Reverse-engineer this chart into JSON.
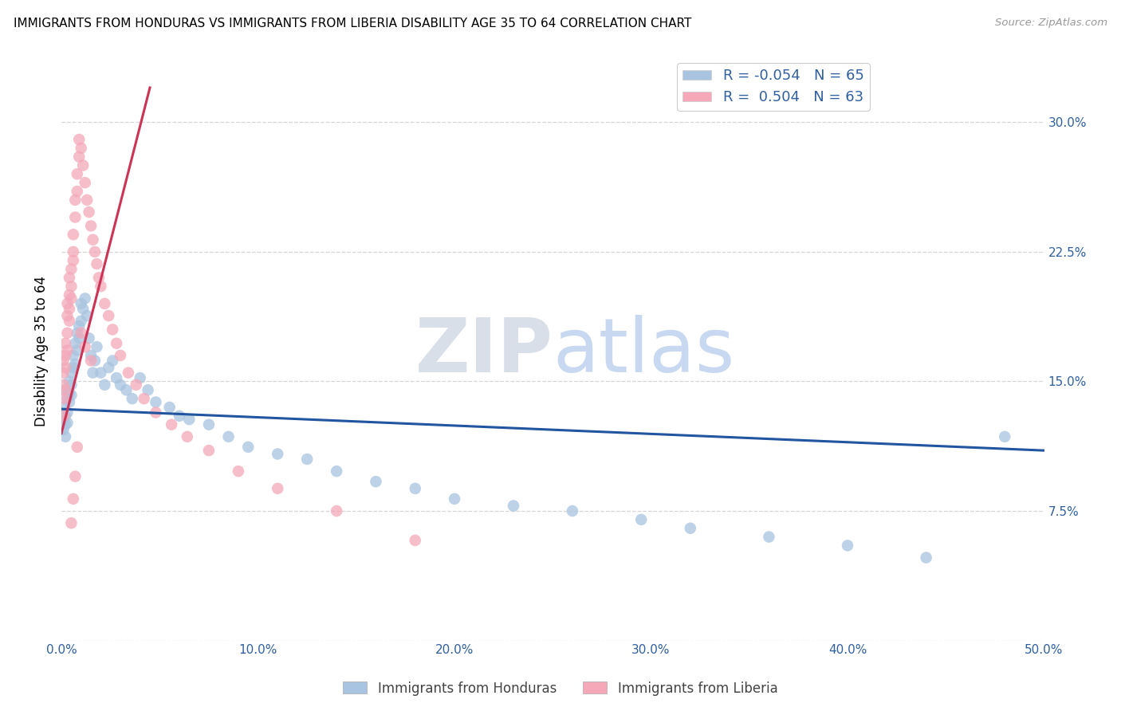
{
  "title": "IMMIGRANTS FROM HONDURAS VS IMMIGRANTS FROM LIBERIA DISABILITY AGE 35 TO 64 CORRELATION CHART",
  "source": "Source: ZipAtlas.com",
  "ylabel": "Disability Age 35 to 64",
  "xlim": [
    0.0,
    0.5
  ],
  "ylim": [
    0.0,
    0.335
  ],
  "xticks": [
    0.0,
    0.1,
    0.2,
    0.3,
    0.4,
    0.5
  ],
  "xticklabels": [
    "0.0%",
    "10.0%",
    "20.0%",
    "30.0%",
    "40.0%",
    "50.0%"
  ],
  "yticks": [
    0.0,
    0.075,
    0.15,
    0.225,
    0.3
  ],
  "yticklabels": [
    "",
    "7.5%",
    "15.0%",
    "22.5%",
    "30.0%"
  ],
  "legend_labels": [
    "Immigrants from Honduras",
    "Immigrants from Liberia"
  ],
  "legend_r_blue": "R = -0.054",
  "legend_r_pink": "R =  0.504",
  "legend_n_blue": "N = 65",
  "legend_n_pink": "N = 63",
  "blue_color": "#a8c4e0",
  "pink_color": "#f4a8b8",
  "blue_line_color": "#2255a0",
  "pink_line_color": "#cc3355",
  "watermark_zip": "ZIP",
  "watermark_atlas": "atlas",
  "watermark_color": "#d0ddf0",
  "honduras_x": [
    0.001,
    0.001,
    0.001,
    0.002,
    0.002,
    0.002,
    0.002,
    0.003,
    0.003,
    0.003,
    0.004,
    0.004,
    0.004,
    0.005,
    0.005,
    0.005,
    0.006,
    0.006,
    0.007,
    0.007,
    0.008,
    0.008,
    0.009,
    0.009,
    0.01,
    0.01,
    0.011,
    0.012,
    0.013,
    0.014,
    0.015,
    0.016,
    0.017,
    0.018,
    0.02,
    0.022,
    0.024,
    0.026,
    0.028,
    0.03,
    0.033,
    0.036,
    0.04,
    0.044,
    0.048,
    0.055,
    0.06,
    0.065,
    0.075,
    0.085,
    0.095,
    0.11,
    0.125,
    0.14,
    0.16,
    0.18,
    0.2,
    0.23,
    0.26,
    0.295,
    0.32,
    0.36,
    0.4,
    0.44,
    0.48
  ],
  "honduras_y": [
    0.135,
    0.128,
    0.122,
    0.145,
    0.13,
    0.125,
    0.118,
    0.14,
    0.132,
    0.126,
    0.15,
    0.143,
    0.138,
    0.155,
    0.148,
    0.142,
    0.165,
    0.158,
    0.172,
    0.16,
    0.178,
    0.168,
    0.182,
    0.175,
    0.195,
    0.185,
    0.192,
    0.198,
    0.188,
    0.175,
    0.165,
    0.155,
    0.162,
    0.17,
    0.155,
    0.148,
    0.158,
    0.162,
    0.152,
    0.148,
    0.145,
    0.14,
    0.152,
    0.145,
    0.138,
    0.135,
    0.13,
    0.128,
    0.125,
    0.118,
    0.112,
    0.108,
    0.105,
    0.098,
    0.092,
    0.088,
    0.082,
    0.078,
    0.075,
    0.07,
    0.065,
    0.06,
    0.055,
    0.048,
    0.118
  ],
  "liberia_x": [
    0.001,
    0.001,
    0.001,
    0.001,
    0.001,
    0.002,
    0.002,
    0.002,
    0.002,
    0.003,
    0.003,
    0.003,
    0.003,
    0.004,
    0.004,
    0.004,
    0.004,
    0.005,
    0.005,
    0.005,
    0.006,
    0.006,
    0.006,
    0.007,
    0.007,
    0.008,
    0.008,
    0.009,
    0.009,
    0.01,
    0.011,
    0.012,
    0.013,
    0.014,
    0.015,
    0.016,
    0.017,
    0.018,
    0.019,
    0.02,
    0.022,
    0.024,
    0.026,
    0.028,
    0.03,
    0.034,
    0.038,
    0.042,
    0.048,
    0.056,
    0.064,
    0.075,
    0.09,
    0.11,
    0.14,
    0.18,
    0.01,
    0.012,
    0.015,
    0.008,
    0.007,
    0.006,
    0.005
  ],
  "liberia_y": [
    0.13,
    0.148,
    0.155,
    0.162,
    0.14,
    0.158,
    0.172,
    0.165,
    0.145,
    0.178,
    0.188,
    0.195,
    0.168,
    0.2,
    0.21,
    0.192,
    0.185,
    0.215,
    0.205,
    0.198,
    0.225,
    0.235,
    0.22,
    0.245,
    0.255,
    0.27,
    0.26,
    0.28,
    0.29,
    0.285,
    0.275,
    0.265,
    0.255,
    0.248,
    0.24,
    0.232,
    0.225,
    0.218,
    0.21,
    0.205,
    0.195,
    0.188,
    0.18,
    0.172,
    0.165,
    0.155,
    0.148,
    0.14,
    0.132,
    0.125,
    0.118,
    0.11,
    0.098,
    0.088,
    0.075,
    0.058,
    0.178,
    0.17,
    0.162,
    0.112,
    0.095,
    0.082,
    0.068
  ],
  "blue_trend_x": [
    0.0,
    0.5
  ],
  "blue_trend_y": [
    0.134,
    0.11
  ],
  "pink_trend_x": [
    0.0,
    0.045
  ],
  "pink_trend_y": [
    0.12,
    0.32
  ]
}
